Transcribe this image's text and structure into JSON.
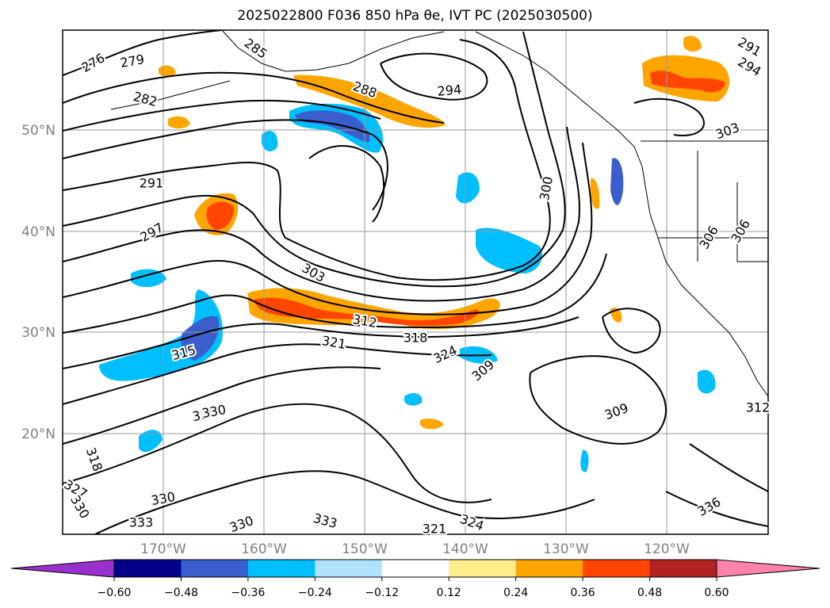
{
  "title": "2025022800 F036 850 hPa θe, IVT PC (2025030500)",
  "map": {
    "lat_labels": [
      "50°N",
      "40°N",
      "30°N",
      "20°N"
    ],
    "lon_labels": [
      "170°W",
      "160°W",
      "150°W",
      "140°W",
      "130°W",
      "120°W"
    ],
    "contour_labels": [
      "276",
      "279",
      "282",
      "285",
      "288",
      "291",
      "294",
      "297",
      "300",
      "303",
      "306",
      "309",
      "312",
      "315",
      "318",
      "321",
      "324",
      "327",
      "330",
      "333",
      "336",
      "294",
      "291",
      "303",
      "306",
      "309",
      "312",
      "330",
      "330",
      "324",
      "330",
      "333",
      "330",
      "321",
      "318"
    ]
  },
  "colorbar": {
    "ticks": [
      "−0.60",
      "−0.48",
      "−0.36",
      "−0.24",
      "−0.12",
      "0.12",
      "0.24",
      "0.36",
      "0.48",
      "0.60"
    ],
    "colors": [
      "#9932cc",
      "#00008b",
      "#3a5fcd",
      "#00bfff",
      "#b0e2ff",
      "#ffffff",
      "#ffec8b",
      "#ffa500",
      "#ff4500",
      "#b22222",
      "#ff82ab"
    ]
  }
}
